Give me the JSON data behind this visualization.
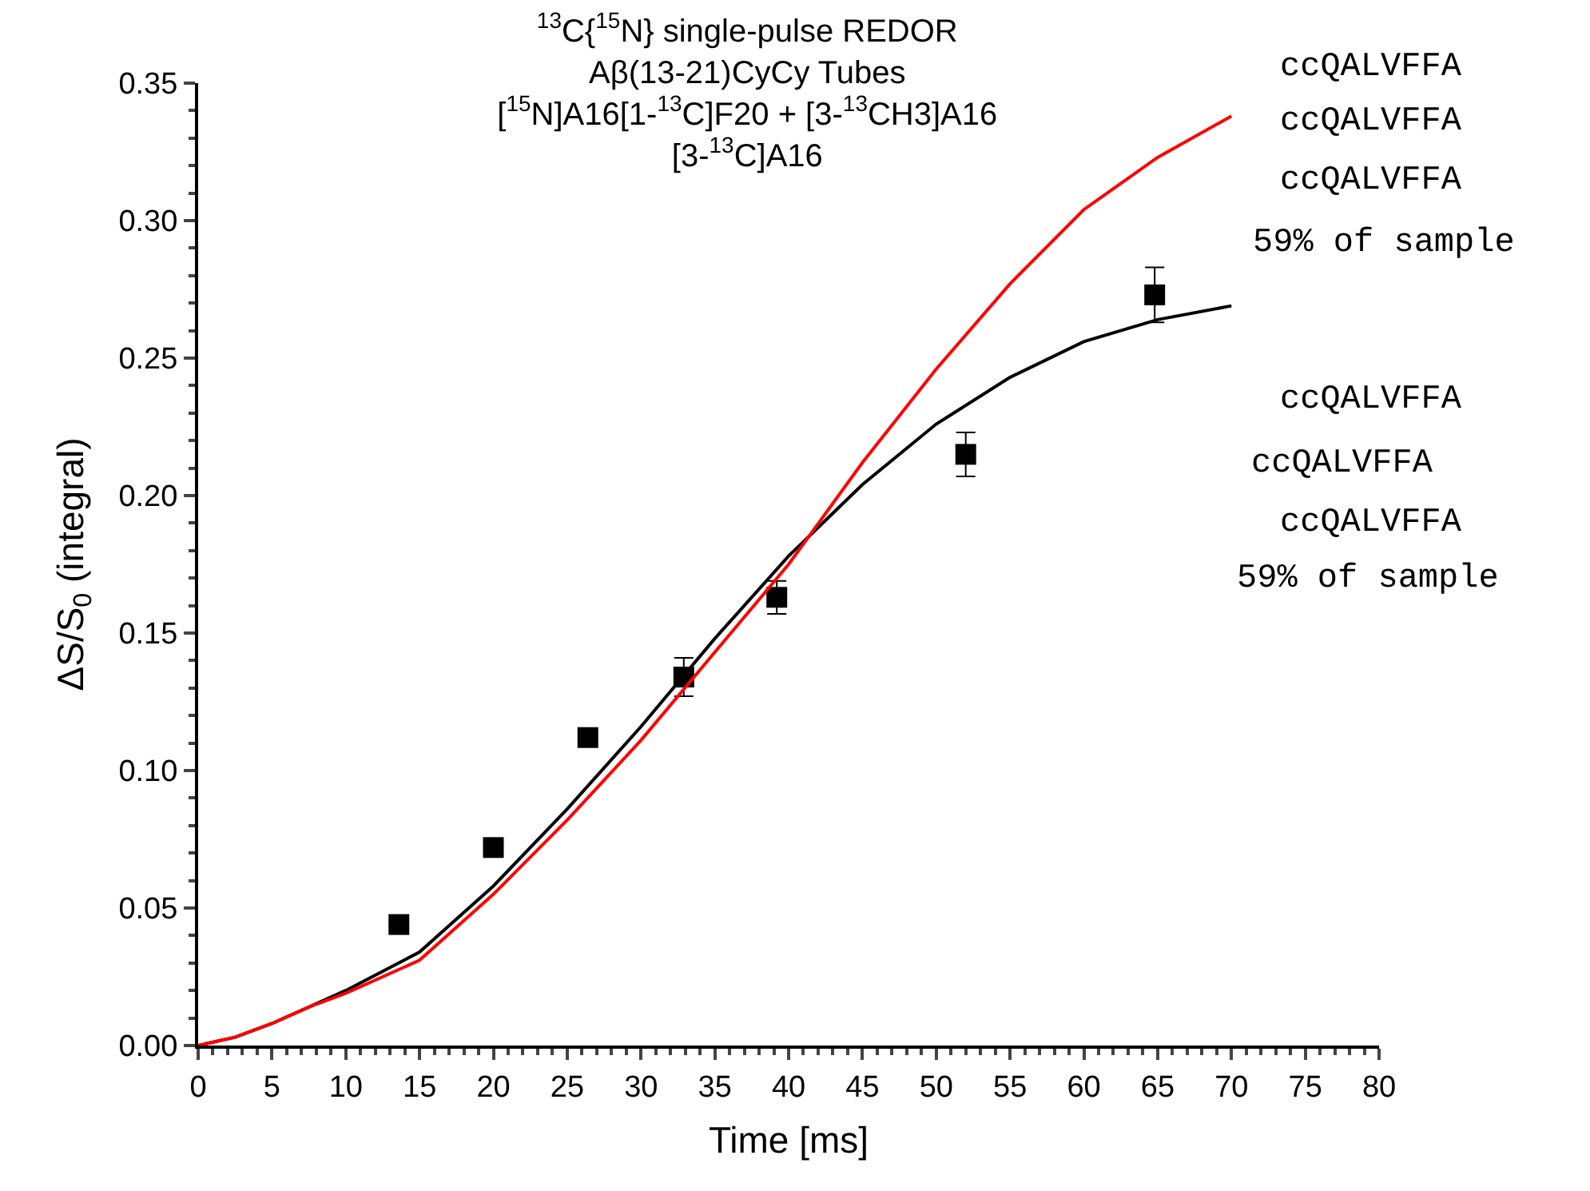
{
  "chart_data": {
    "type": "scatter",
    "title": "$^{13}$C{$^{15}$N} single-pulse REDOR\nAβ(13-21)CyCy Tubes\n[$^{15}$N]A16[1-$^{13}$C]F20 + [3-$^{13}$CH3]A16\n[3-$^{13}$C]A16",
    "xlabel": "Time [ms]",
    "ylabel": "ΔS/S$_{0}$ (integral)",
    "annotations": [
      "ccQALVFFA",
      "ccQALVFFA",
      "ccQALVFFA",
      "59% of sample",
      "ccQALVFFA",
      "ccQALVFFA",
      "ccQALVFFA",
      "59% of sample"
    ],
    "xlim": [
      0,
      80
    ],
    "xticks": [
      0,
      5,
      10,
      15,
      20,
      25,
      30,
      35,
      40,
      45,
      50,
      55,
      60,
      65,
      70,
      75,
      80
    ],
    "ylim": [
      0,
      0.35
    ],
    "yticks": [
      {
        "value": 0,
        "label": "0.00"
      },
      {
        "value": 0.05,
        "label": "0.05"
      },
      {
        "value": 0.1,
        "label": "0.10"
      },
      {
        "value": 0.15,
        "label": "0.15"
      },
      {
        "value": 0.2,
        "label": "0.20"
      },
      {
        "value": 0.25,
        "label": "0.25"
      },
      {
        "value": 0.3,
        "label": "0.30"
      },
      {
        "value": 0.35,
        "label": "0.35"
      }
    ],
    "legend": false,
    "series": [
      {
        "marker": "square",
        "color": "#000000",
        "x": [
          13.6,
          20,
          26.4,
          32.9,
          39.2,
          52,
          64.8
        ],
        "values": [
          0.044,
          0.072,
          0.112,
          0.134,
          0.163,
          0.215,
          0.273
        ],
        "errors": [
          null,
          null,
          null,
          0.007,
          0.006,
          0.008,
          0.01
        ]
      },
      {
        "type": "line",
        "line_style": "solid",
        "color": "#000000",
        "x": [
          0,
          2.5,
          5,
          7.5,
          10,
          15,
          20,
          25,
          30,
          35,
          40,
          45,
          50,
          55,
          60,
          65,
          70
        ],
        "values": [
          0,
          0.003,
          0.008,
          0.014,
          0.02,
          0.034,
          0.058,
          0.086,
          0.116,
          0.148,
          0.178,
          0.204,
          0.226,
          0.243,
          0.256,
          0.264,
          0.269
        ]
      },
      {
        "type": "line",
        "line_style": "solid",
        "color": "#ff0000",
        "x": [
          0,
          2.5,
          5,
          7.5,
          10,
          15,
          20,
          25,
          30,
          35,
          40,
          45,
          50,
          55,
          60,
          65,
          70
        ],
        "values": [
          0,
          0.003,
          0.008,
          0.014,
          0.019,
          0.031,
          0.055,
          0.082,
          0.111,
          0.143,
          0.175,
          0.212,
          0.246,
          0.277,
          0.304,
          0.323,
          0.338
        ]
      }
    ]
  }
}
